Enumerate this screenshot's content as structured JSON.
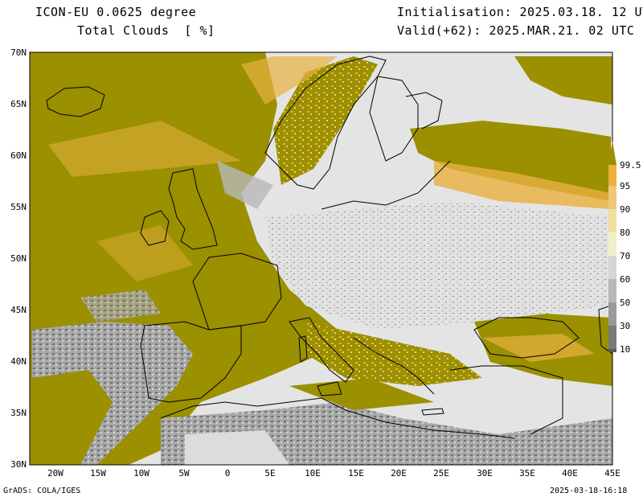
{
  "header": {
    "model": "ICON-EU 0.0625 degree",
    "variable": "Total Clouds  [ %]",
    "init": "Initialisation: 2025.03.18. 12 UTC",
    "valid": "Valid(+62): 2025.MAR.21. 02 UTC"
  },
  "footer": {
    "credit": "GrADS: COLA/IGES",
    "timestamp": "2025-03-18-16:18"
  },
  "map": {
    "lat_labels": [
      "70N",
      "65N",
      "60N",
      "55N",
      "50N",
      "45N",
      "40N",
      "35N",
      "30N"
    ],
    "lon_labels": [
      "20W",
      "15W",
      "10W",
      "5W",
      "0",
      "5E",
      "10E",
      "15E",
      "20E",
      "25E",
      "30E",
      "35E",
      "40E",
      "45E"
    ],
    "lat_range": [
      30,
      70
    ],
    "lon_range": [
      -23,
      45
    ]
  },
  "colorbar": {
    "levels": [
      "10",
      "30",
      "50",
      "60",
      "70",
      "80",
      "90",
      "95",
      "99.5"
    ],
    "colors": [
      "#5c5c5c",
      "#7a7a7a",
      "#9a9a9a",
      "#b8b8b8",
      "#d6d6d6",
      "#f0f0c8",
      "#f2dfa0",
      "#eec878",
      "#ebaf3a",
      "#9a9000"
    ]
  }
}
